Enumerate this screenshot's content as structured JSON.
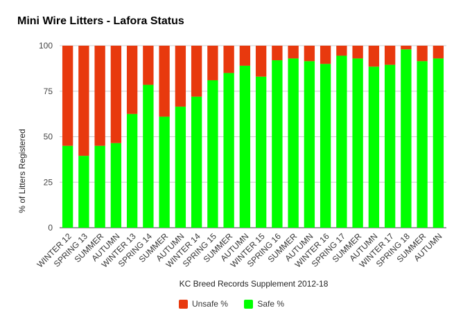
{
  "chart_data": {
    "type": "bar",
    "stacked": true,
    "title": "Mini Wire Litters - Lafora Status",
    "xlabel": "KC Breed Records Supplement 2012-18",
    "ylabel": "% of Litters Registered",
    "ylim": [
      0,
      100
    ],
    "yticks": [
      "0",
      "25",
      "50",
      "75",
      "100"
    ],
    "grid": true,
    "legend_position": "bottom",
    "categories": [
      "WINTER 12",
      "SPRING 13",
      "SUMMER",
      "AUTUMN",
      "WINTER 13",
      "SPRING 14",
      "SUMMER",
      "AUTUMN",
      "WINTER 14",
      "SPRING 15",
      "SUMMER",
      "AUTUMN",
      "WINTER 15",
      "SPRING 16",
      "SUMMER",
      "AUTUMN",
      "WINTER 16",
      "SPRING 17",
      "SUMMER",
      "AUTUMN",
      "WINTER 17",
      "SPRING 18",
      "SUMMER",
      "AUTUMN"
    ],
    "series": [
      {
        "name": "Safe %",
        "color": "#00ff00",
        "values": [
          45,
          39.5,
          45,
          46.5,
          62.5,
          78.5,
          61,
          66.5,
          72,
          81,
          85,
          89,
          83,
          92,
          93,
          91.5,
          90,
          94.5,
          93,
          88.5,
          89.5,
          98,
          91.5,
          93
        ]
      },
      {
        "name": "Unsafe %",
        "color": "#e8390e",
        "values": [
          55,
          60.5,
          55,
          53.5,
          37.5,
          21.5,
          39,
          33.5,
          28,
          19,
          15,
          11,
          17,
          8,
          7,
          8.5,
          10,
          5.5,
          7,
          11.5,
          10.5,
          2,
          8.5,
          7
        ]
      }
    ],
    "legend": [
      {
        "label": "Unsafe %",
        "color": "#e8390e"
      },
      {
        "label": "Safe %",
        "color": "#00ff00"
      }
    ]
  }
}
